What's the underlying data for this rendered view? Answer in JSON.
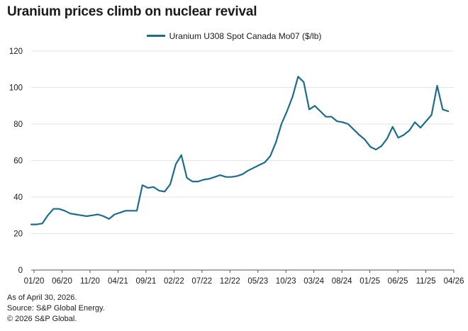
{
  "title": "Uranium prices climb on nuclear revival",
  "footer": {
    "line1": "As of April 30, 2026.",
    "line2": "Source: S&P Global Energy.",
    "line3": "© 2026 S&P Global."
  },
  "chart_data": {
    "type": "line",
    "ylim": [
      0,
      120
    ],
    "yticks": [
      0,
      20,
      40,
      60,
      80,
      100,
      120
    ],
    "xticks": [
      "01/20",
      "06/20",
      "11/20",
      "04/21",
      "09/21",
      "02/22",
      "07/22",
      "12/22",
      "05/23",
      "10/23",
      "03/24",
      "08/24",
      "01/25",
      "06/25",
      "11/25",
      "04/26"
    ],
    "xlim": [
      "2020-01",
      "2026-05"
    ],
    "legend_position": "top-center",
    "grid": "horizontal",
    "line_color": "#1b6d8a",
    "series": [
      {
        "name": "Uranium U308 Spot Canada Mo07 ($/lb)",
        "x": [
          "2020-01",
          "2020-02",
          "2020-03",
          "2020-04",
          "2020-05",
          "2020-06",
          "2020-07",
          "2020-08",
          "2020-09",
          "2020-10",
          "2020-11",
          "2020-12",
          "2021-01",
          "2021-02",
          "2021-03",
          "2021-04",
          "2021-05",
          "2021-06",
          "2021-07",
          "2021-08",
          "2021-09",
          "2021-10",
          "2021-11",
          "2021-12",
          "2022-01",
          "2022-02",
          "2022-03",
          "2022-04",
          "2022-05",
          "2022-06",
          "2022-07",
          "2022-08",
          "2022-09",
          "2022-10",
          "2022-11",
          "2022-12",
          "2023-01",
          "2023-02",
          "2023-03",
          "2023-04",
          "2023-05",
          "2023-06",
          "2023-07",
          "2023-08",
          "2023-09",
          "2023-10",
          "2023-11",
          "2023-12",
          "2024-01",
          "2024-02",
          "2024-03",
          "2024-04",
          "2024-05",
          "2024-06",
          "2024-07",
          "2024-08",
          "2024-09",
          "2024-10",
          "2024-11",
          "2024-12",
          "2025-01",
          "2025-02",
          "2025-03",
          "2025-04",
          "2025-05",
          "2025-06",
          "2025-07",
          "2025-08",
          "2025-09",
          "2025-10",
          "2025-11",
          "2025-12",
          "2026-01",
          "2026-02",
          "2026-03",
          "2026-04"
        ],
        "values": [
          25.0,
          25.0,
          25.5,
          30.0,
          33.5,
          33.5,
          32.5,
          31.0,
          30.5,
          30.0,
          29.5,
          30.0,
          30.5,
          29.5,
          28.0,
          30.5,
          31.5,
          32.5,
          32.5,
          32.5,
          46.5,
          45.0,
          45.5,
          43.5,
          43.0,
          47.0,
          58.0,
          63.0,
          50.5,
          48.5,
          48.5,
          49.5,
          50.0,
          51.0,
          52.0,
          51.0,
          51.0,
          51.5,
          52.5,
          54.5,
          56.0,
          57.5,
          59.0,
          62.5,
          70.0,
          80.0,
          87.0,
          95.0,
          106.0,
          103.0,
          88.0,
          90.0,
          87.0,
          84.0,
          84.0,
          81.5,
          81.0,
          80.0,
          77.0,
          74.0,
          71.5,
          67.5,
          66.0,
          68.0,
          72.0,
          78.5,
          72.5,
          74.0,
          76.5,
          81.0,
          78.0,
          81.5,
          85.0,
          101.0,
          88.0,
          87.0
        ]
      }
    ]
  }
}
